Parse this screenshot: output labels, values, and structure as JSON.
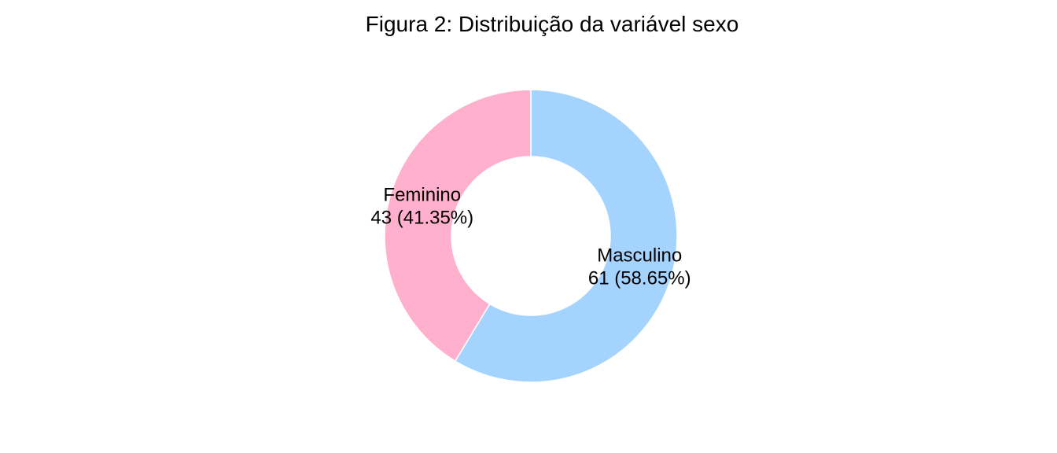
{
  "chart_data": {
    "type": "pie",
    "title": "Figura 2: Distribuição da variável sexo",
    "donut": true,
    "slices": [
      {
        "label": "Masculino",
        "value": 61,
        "percent": 58.65,
        "value_text": "61 (58.65%)",
        "color": "#A4D3FE"
      },
      {
        "label": "Feminino",
        "value": 43,
        "percent": 41.35,
        "value_text": "43 (41.35%)",
        "color": "#FFB0CC"
      }
    ]
  }
}
